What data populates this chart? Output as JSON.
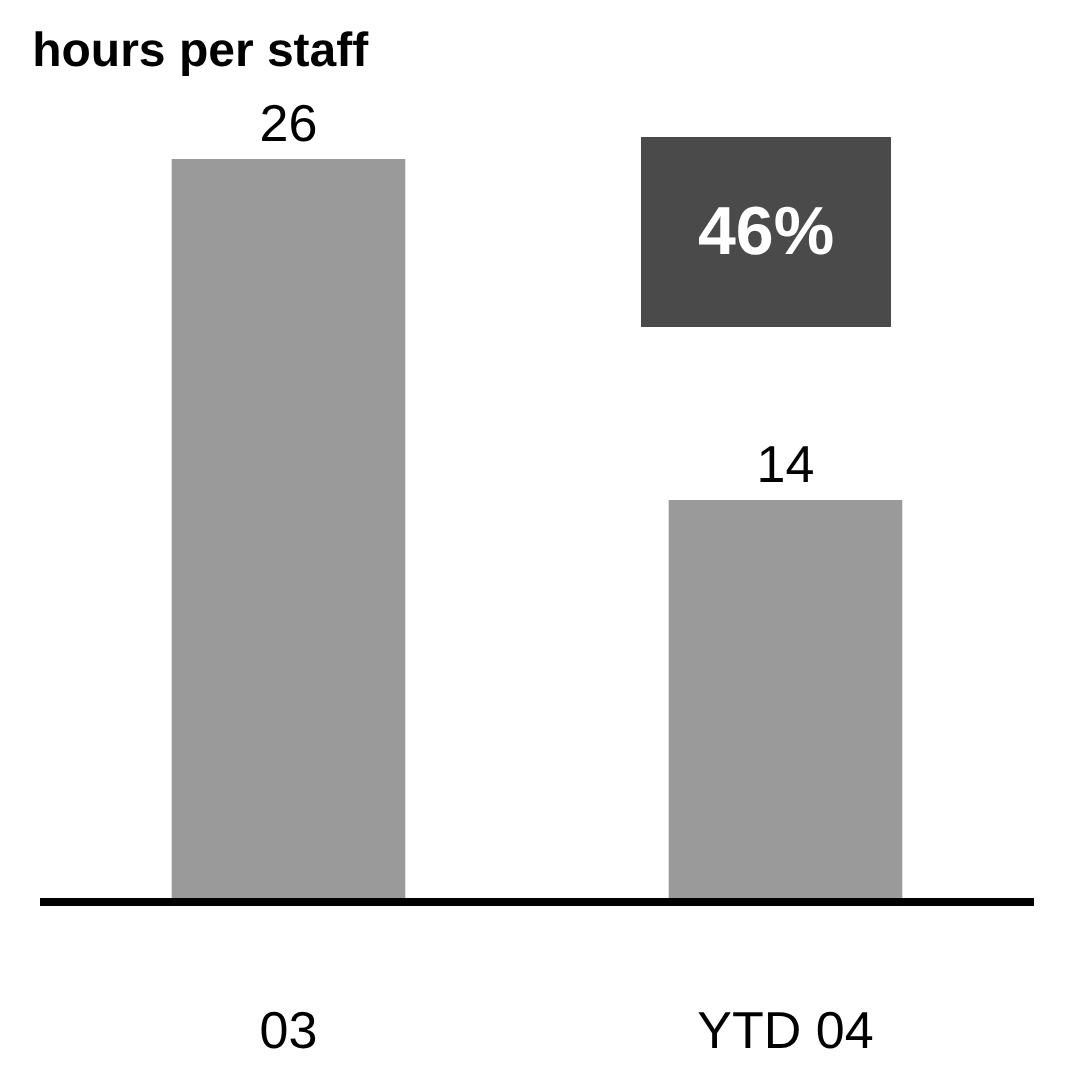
{
  "chart_data": {
    "type": "bar",
    "title": "hours per staff",
    "categories": [
      "03",
      "YTD 04"
    ],
    "values": [
      26,
      14
    ],
    "color": "#9a9a9a",
    "data_labels": true,
    "annotations": [
      "46%"
    ]
  }
}
